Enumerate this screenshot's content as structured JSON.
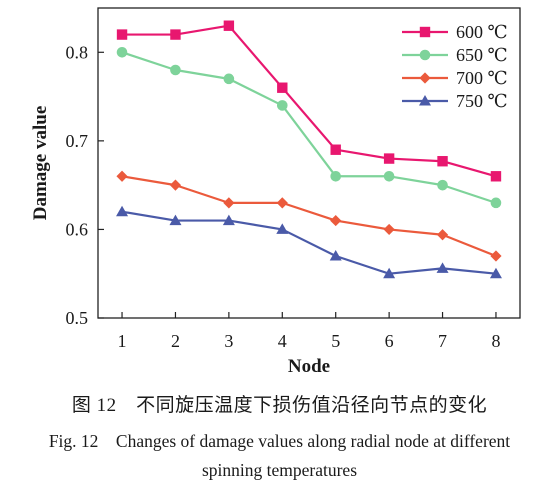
{
  "chart_data": {
    "type": "line",
    "xlabel": "Node",
    "ylabel": "Damage value",
    "x": [
      "1",
      "2",
      "3",
      "4",
      "5",
      "6",
      "7",
      "8"
    ],
    "ylim": [
      0.5,
      0.85
    ],
    "yticks": [
      "0.5",
      "0.6",
      "0.7",
      "0.8"
    ],
    "grid": false,
    "legend_position": "top-right",
    "series": [
      {
        "name": "600 ℃",
        "color": "#e8176f",
        "marker": "square",
        "values": [
          0.82,
          0.82,
          0.83,
          0.76,
          0.69,
          0.68,
          0.677,
          0.66
        ]
      },
      {
        "name": "650 ℃",
        "color": "#7ed39a",
        "marker": "circle",
        "values": [
          0.8,
          0.78,
          0.77,
          0.74,
          0.66,
          0.66,
          0.65,
          0.63
        ]
      },
      {
        "name": "700 ℃",
        "color": "#eb5a3c",
        "marker": "diamond",
        "values": [
          0.66,
          0.65,
          0.63,
          0.63,
          0.61,
          0.6,
          0.594,
          0.57
        ]
      },
      {
        "name": "750 ℃",
        "color": "#4a5aa8",
        "marker": "triangle",
        "values": [
          0.62,
          0.61,
          0.61,
          0.6,
          0.57,
          0.55,
          0.556,
          0.55
        ]
      }
    ]
  },
  "caption": {
    "cn": "图 12　不同旋压温度下损伤值沿径向节点的变化",
    "en_line1": "Fig. 12　Changes of damage values along radial node at different",
    "en_line2": "spinning temperatures"
  }
}
